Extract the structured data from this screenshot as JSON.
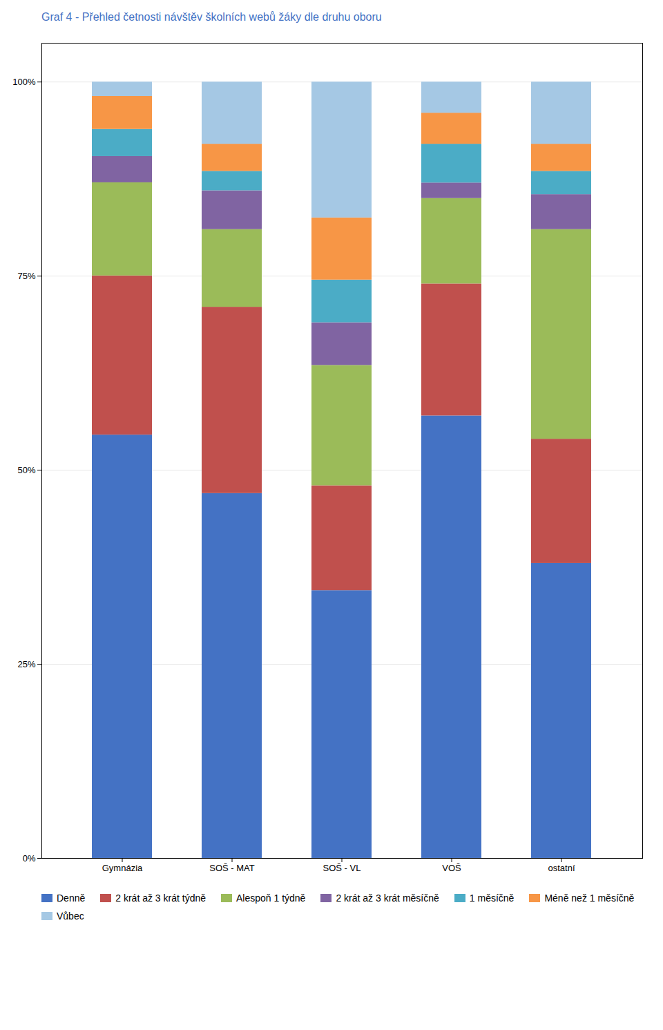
{
  "chart_data": {
    "type": "bar",
    "stacked": true,
    "title": "Graf 4 - Přehled četnosti návštěv školních webů žáky dle druhu oboru",
    "categories": [
      "Gymnázia",
      "SOŠ - MAT",
      "SOŠ - VL",
      "VOŠ",
      "ostatní"
    ],
    "series": [
      {
        "name": "Denně",
        "color": "#4472C4",
        "values": [
          54.53,
          47.0,
          34.5,
          57.0,
          38.0
        ]
      },
      {
        "name": "2 krát až 3 krát týdně",
        "color": "#C0504D",
        "values": [
          20.5,
          24.0,
          13.5,
          17.0,
          16.0
        ]
      },
      {
        "name": "Alespoň 1 týdně",
        "color": "#9BBB59",
        "values": [
          12.0,
          10.0,
          15.5,
          11.0,
          27.0
        ]
      },
      {
        "name": "2 krát až 3 krát měsíčně",
        "color": "#8064A2",
        "values": [
          3.38,
          5.0,
          5.5,
          2.0,
          4.5
        ]
      },
      {
        "name": "1 měsíčně",
        "color": "#4BACC6",
        "values": [
          3.49,
          2.5,
          5.5,
          5.0,
          3.0
        ]
      },
      {
        "name": "Méně než 1 měsíčně",
        "color": "#F79646",
        "values": [
          4.25,
          3.5,
          8.0,
          4.0,
          3.5
        ]
      },
      {
        "name": "Vůbec",
        "color": "#A5C8E4",
        "values": [
          1.85,
          8.0,
          17.5,
          4.0,
          8.0
        ]
      }
    ],
    "ylim": [
      0,
      105
    ],
    "yticks": [
      {
        "value": 0,
        "label": "0%"
      },
      {
        "value": 25,
        "label": "25%"
      },
      {
        "value": 50,
        "label": "50%"
      },
      {
        "value": 75,
        "label": "75%"
      },
      {
        "value": 100,
        "label": "100%"
      }
    ],
    "grid": true,
    "legend": "bottom",
    "title_color": "#4472C4"
  }
}
